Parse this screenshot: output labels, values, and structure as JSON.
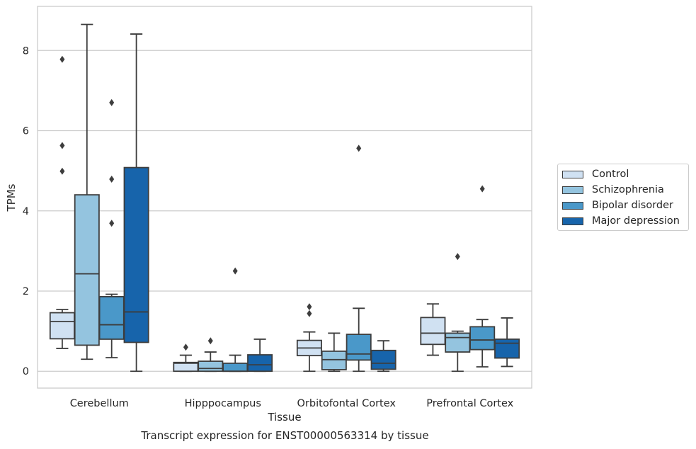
{
  "chart_data": {
    "type": "box",
    "xlabel": "Tissue",
    "ylabel": "TPMs",
    "caption": "Transcript expression for ENST00000563314 by tissue",
    "categories": [
      "Cerebellum",
      "Hipppocampus",
      "Orbitofontal Cortex",
      "Prefrontal Cortex"
    ],
    "ylim": [
      -0.42,
      9.1
    ],
    "yticks": [
      0,
      2,
      4,
      6,
      8
    ],
    "grid": true,
    "legend_position": "right",
    "series": [
      {
        "name": "Control",
        "color": "#d0e1f2",
        "boxes": [
          {
            "whisker_low": 0.57,
            "q1": 0.81,
            "median": 1.24,
            "q3": 1.46,
            "whisker_high": 1.54,
            "outliers": [
              4.99,
              5.63,
              7.78
            ]
          },
          {
            "whisker_low": 0.0,
            "q1": 0.0,
            "median": 0.2,
            "q3": 0.22,
            "whisker_high": 0.4,
            "outliers": [
              0.6
            ]
          },
          {
            "whisker_low": 0.0,
            "q1": 0.39,
            "median": 0.58,
            "q3": 0.77,
            "whisker_high": 0.98,
            "outliers": [
              1.44,
              1.61
            ]
          },
          {
            "whisker_low": 0.4,
            "q1": 0.67,
            "median": 0.95,
            "q3": 1.34,
            "whisker_high": 1.68,
            "outliers": []
          }
        ]
      },
      {
        "name": "Schizophrenia",
        "color": "#94c4df",
        "boxes": [
          {
            "whisker_low": 0.3,
            "q1": 0.65,
            "median": 2.43,
            "q3": 4.4,
            "whisker_high": 8.65,
            "outliers": []
          },
          {
            "whisker_low": 0.0,
            "q1": 0.0,
            "median": 0.07,
            "q3": 0.25,
            "whisker_high": 0.48,
            "outliers": [
              0.76
            ]
          },
          {
            "whisker_low": 0.0,
            "q1": 0.04,
            "median": 0.29,
            "q3": 0.5,
            "whisker_high": 0.95,
            "outliers": []
          },
          {
            "whisker_low": 0.0,
            "q1": 0.48,
            "median": 0.84,
            "q3": 0.95,
            "whisker_high": 1.0,
            "outliers": [
              2.86
            ]
          }
        ]
      },
      {
        "name": "Bipolar disorder",
        "color": "#4a98c9",
        "boxes": [
          {
            "whisker_low": 0.34,
            "q1": 0.8,
            "median": 1.16,
            "q3": 1.86,
            "whisker_high": 1.92,
            "outliers": [
              3.69,
              4.79,
              6.7
            ]
          },
          {
            "whisker_low": 0.0,
            "q1": 0.0,
            "median": 0.0,
            "q3": 0.2,
            "whisker_high": 0.4,
            "outliers": [
              2.5
            ]
          },
          {
            "whisker_low": 0.0,
            "q1": 0.28,
            "median": 0.43,
            "q3": 0.92,
            "whisker_high": 1.57,
            "outliers": [
              5.56
            ]
          },
          {
            "whisker_low": 0.11,
            "q1": 0.54,
            "median": 0.78,
            "q3": 1.11,
            "whisker_high": 1.29,
            "outliers": [
              4.55
            ]
          }
        ]
      },
      {
        "name": "Major depression",
        "color": "#1764ab",
        "boxes": [
          {
            "whisker_low": 0.0,
            "q1": 0.72,
            "median": 1.48,
            "q3": 5.08,
            "whisker_high": 8.41,
            "outliers": []
          },
          {
            "whisker_low": 0.0,
            "q1": 0.0,
            "median": 0.16,
            "q3": 0.41,
            "whisker_high": 0.8,
            "outliers": []
          },
          {
            "whisker_low": 0.0,
            "q1": 0.05,
            "median": 0.2,
            "q3": 0.52,
            "whisker_high": 0.76,
            "outliers": []
          },
          {
            "whisker_low": 0.12,
            "q1": 0.33,
            "median": 0.7,
            "q3": 0.8,
            "whisker_high": 1.33,
            "outliers": []
          }
        ]
      }
    ]
  }
}
